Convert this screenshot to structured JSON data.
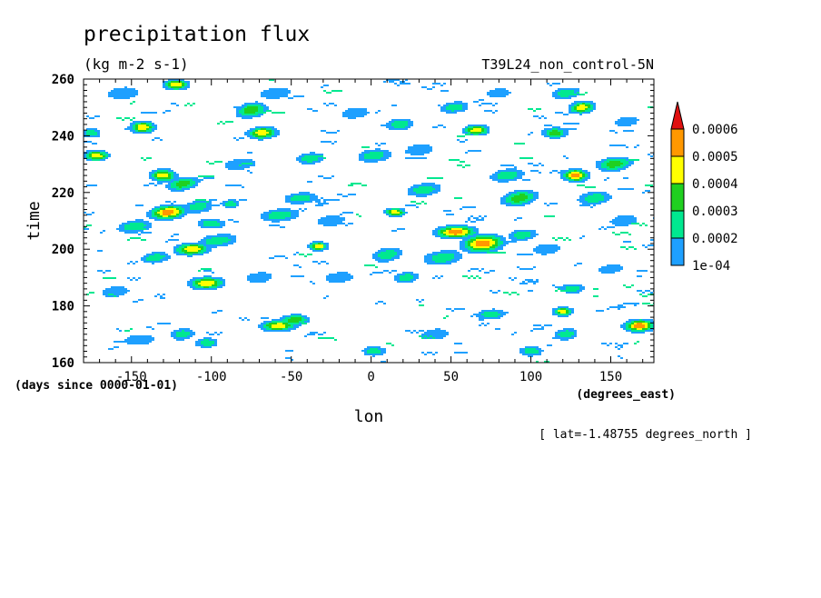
{
  "chart_data": {
    "type": "heatmap",
    "title": "precipitation flux",
    "units": "(kg m-2 s-1)",
    "experiment": "T39L24_non_control-5N",
    "xlabel": "lon",
    "x_units": "(degrees_east)",
    "ylabel": "time",
    "y_units": "(days since 0000-01-01)",
    "footnote": "[ lat=-1.48755 degrees_north ]",
    "xlim": [
      -180,
      177
    ],
    "ylim": [
      160,
      260
    ],
    "x_ticks": [
      {
        "value": -150,
        "label": "-150"
      },
      {
        "value": -100,
        "label": "-100"
      },
      {
        "value": -50,
        "label": "-50"
      },
      {
        "value": 0,
        "label": "0"
      },
      {
        "value": 50,
        "label": "50"
      },
      {
        "value": 100,
        "label": "100"
      },
      {
        "value": 150,
        "label": "150"
      }
    ],
    "y_ticks": [
      {
        "value": 160,
        "label": "160"
      },
      {
        "value": 180,
        "label": "180"
      },
      {
        "value": 200,
        "label": "200"
      },
      {
        "value": 220,
        "label": "220"
      },
      {
        "value": 240,
        "label": "240"
      },
      {
        "value": 260,
        "label": "260"
      }
    ],
    "colorbar": {
      "extend": "max",
      "levels": [
        {
          "value": "1e-04",
          "color": "#1ea0ff"
        },
        {
          "value": "0.0002",
          "color": "#00e890"
        },
        {
          "value": "0.0003",
          "color": "#20d020"
        },
        {
          "value": "0.0004",
          "color": "#ffff00"
        },
        {
          "value": "0.0005",
          "color": "#ff9800"
        },
        {
          "value": "0.0006",
          "color": "#e01010"
        }
      ]
    },
    "features": [
      {
        "lon": -143,
        "time": 243,
        "peak": 5,
        "dlon": 5,
        "dt": 1.4,
        "slope": 0
      },
      {
        "lon": -127,
        "time": 213,
        "peak": 6,
        "dlon": 7,
        "dt": 1.6,
        "slope": 0.3
      },
      {
        "lon": -130,
        "time": 226,
        "peak": 5,
        "dlon": 5,
        "dt": 1.4,
        "slope": 0
      },
      {
        "lon": -122,
        "time": 258,
        "peak": 5,
        "dlon": 5,
        "dt": 1.2,
        "slope": 0
      },
      {
        "lon": -118,
        "time": 223,
        "peak": 4,
        "dlon": 6,
        "dt": 1.6,
        "slope": 0.4
      },
      {
        "lon": -112,
        "time": 200,
        "peak": 5,
        "dlon": 7,
        "dt": 1.4,
        "slope": 0.2
      },
      {
        "lon": -103,
        "time": 188,
        "peak": 5,
        "dlon": 7,
        "dt": 1.4,
        "slope": 0.1
      },
      {
        "lon": -108,
        "time": 215,
        "peak": 3,
        "dlon": 6,
        "dt": 1.6,
        "slope": 0.3
      },
      {
        "lon": -100,
        "time": 209,
        "peak": 3,
        "dlon": 6,
        "dt": 1.2,
        "slope": 0
      },
      {
        "lon": -96,
        "time": 203,
        "peak": 3,
        "dlon": 8,
        "dt": 1.6,
        "slope": 0.5
      },
      {
        "lon": -88,
        "time": 216,
        "peak": 3,
        "dlon": 4,
        "dt": 1.0,
        "slope": 0
      },
      {
        "lon": -75,
        "time": 249,
        "peak": 4,
        "dlon": 6,
        "dt": 1.8,
        "slope": 0.3
      },
      {
        "lon": -68,
        "time": 241,
        "peak": 5,
        "dlon": 6,
        "dt": 1.4,
        "slope": 0.2
      },
      {
        "lon": -58,
        "time": 173,
        "peak": 5,
        "dlon": 7,
        "dt": 1.3,
        "slope": 0.2
      },
      {
        "lon": -48,
        "time": 175,
        "peak": 4,
        "dlon": 6,
        "dt": 1.3,
        "slope": 0.2
      },
      {
        "lon": -33,
        "time": 201,
        "peak": 5,
        "dlon": 4,
        "dt": 1.0,
        "slope": 0
      },
      {
        "lon": -38,
        "time": 232,
        "peak": 3,
        "dlon": 6,
        "dt": 1.4,
        "slope": 0.2
      },
      {
        "lon": -44,
        "time": 218,
        "peak": 3,
        "dlon": 7,
        "dt": 1.4,
        "slope": 0.3
      },
      {
        "lon": -57,
        "time": 212,
        "peak": 3,
        "dlon": 8,
        "dt": 1.6,
        "slope": 0.4
      },
      {
        "lon": -172,
        "time": 233,
        "peak": 5,
        "dlon": 5,
        "dt": 1.2,
        "slope": 0
      },
      {
        "lon": -175,
        "time": 241,
        "peak": 3,
        "dlon": 4,
        "dt": 1.2,
        "slope": 0
      },
      {
        "lon": -148,
        "time": 208,
        "peak": 3,
        "dlon": 7,
        "dt": 1.6,
        "slope": 0.4
      },
      {
        "lon": -135,
        "time": 197,
        "peak": 3,
        "dlon": 6,
        "dt": 1.4,
        "slope": 0.3
      },
      {
        "lon": -118,
        "time": 170,
        "peak": 3,
        "dlon": 5,
        "dt": 1.4,
        "slope": 0.2
      },
      {
        "lon": -103,
        "time": 167,
        "peak": 3,
        "dlon": 5,
        "dt": 1.2,
        "slope": 0
      },
      {
        "lon": -145,
        "time": 168,
        "peak": 2,
        "dlon": 8,
        "dt": 1.6,
        "slope": 0.3
      },
      {
        "lon": 10,
        "time": 198,
        "peak": 3,
        "dlon": 6,
        "dt": 1.8,
        "slope": 0.3
      },
      {
        "lon": 15,
        "time": 213,
        "peak": 5,
        "dlon": 4,
        "dt": 1.0,
        "slope": 0
      },
      {
        "lon": 2,
        "time": 233,
        "peak": 3,
        "dlon": 7,
        "dt": 1.6,
        "slope": 0.3
      },
      {
        "lon": 18,
        "time": 244,
        "peak": 3,
        "dlon": 6,
        "dt": 1.4,
        "slope": 0.2
      },
      {
        "lon": 33,
        "time": 221,
        "peak": 3,
        "dlon": 7,
        "dt": 1.6,
        "slope": 0.4
      },
      {
        "lon": 22,
        "time": 190,
        "peak": 3,
        "dlon": 5,
        "dt": 1.4,
        "slope": 0.2
      },
      {
        "lon": 2,
        "time": 164,
        "peak": 3,
        "dlon": 5,
        "dt": 1.2,
        "slope": 0
      },
      {
        "lon": 53,
        "time": 206,
        "peak": 6,
        "dlon": 8,
        "dt": 1.4,
        "slope": 0.1
      },
      {
        "lon": 70,
        "time": 202,
        "peak": 6,
        "dlon": 8,
        "dt": 2.0,
        "slope": 0.2
      },
      {
        "lon": 45,
        "time": 197,
        "peak": 3,
        "dlon": 8,
        "dt": 1.8,
        "slope": 0.4
      },
      {
        "lon": 66,
        "time": 242,
        "peak": 5,
        "dlon": 5,
        "dt": 1.2,
        "slope": 0
      },
      {
        "lon": 52,
        "time": 250,
        "peak": 3,
        "dlon": 6,
        "dt": 1.4,
        "slope": 0.3
      },
      {
        "lon": 85,
        "time": 226,
        "peak": 3,
        "dlon": 7,
        "dt": 1.6,
        "slope": 0.4
      },
      {
        "lon": 93,
        "time": 218,
        "peak": 4,
        "dlon": 7,
        "dt": 1.8,
        "slope": 0.4
      },
      {
        "lon": 95,
        "time": 205,
        "peak": 3,
        "dlon": 6,
        "dt": 1.4,
        "slope": 0.3
      },
      {
        "lon": 75,
        "time": 177,
        "peak": 3,
        "dlon": 6,
        "dt": 1.3,
        "slope": 0.2
      },
      {
        "lon": 120,
        "time": 178,
        "peak": 5,
        "dlon": 4,
        "dt": 1.0,
        "slope": 0
      },
      {
        "lon": 128,
        "time": 226,
        "peak": 6,
        "dlon": 5,
        "dt": 1.4,
        "slope": 0
      },
      {
        "lon": 132,
        "time": 250,
        "peak": 5,
        "dlon": 5,
        "dt": 1.4,
        "slope": 0.2
      },
      {
        "lon": 122,
        "time": 255,
        "peak": 3,
        "dlon": 6,
        "dt": 1.4,
        "slope": 0.3
      },
      {
        "lon": 140,
        "time": 218,
        "peak": 3,
        "dlon": 7,
        "dt": 1.6,
        "slope": 0.3
      },
      {
        "lon": 152,
        "time": 230,
        "peak": 4,
        "dlon": 7,
        "dt": 1.6,
        "slope": 0.3
      },
      {
        "lon": 168,
        "time": 173,
        "peak": 6,
        "dlon": 6,
        "dt": 1.4,
        "slope": 0.1
      },
      {
        "lon": 122,
        "time": 170,
        "peak": 3,
        "dlon": 5,
        "dt": 1.4,
        "slope": 0.2
      },
      {
        "lon": 126,
        "time": 186,
        "peak": 3,
        "dlon": 5,
        "dt": 1.2,
        "slope": 0
      },
      {
        "lon": 100,
        "time": 164,
        "peak": 3,
        "dlon": 5,
        "dt": 1.2,
        "slope": 0
      },
      {
        "lon": 115,
        "time": 241,
        "peak": 4,
        "dlon": 5,
        "dt": 1.2,
        "slope": 0
      },
      {
        "lon": 158,
        "time": 210,
        "peak": 2,
        "dlon": 7,
        "dt": 1.6,
        "slope": 0.3
      },
      {
        "lon": 150,
        "time": 193,
        "peak": 2,
        "dlon": 6,
        "dt": 1.4,
        "slope": 0.3
      },
      {
        "lon": -82,
        "time": 230,
        "peak": 2,
        "dlon": 8,
        "dt": 1.8,
        "slope": 0.4
      },
      {
        "lon": -20,
        "time": 190,
        "peak": 2,
        "dlon": 7,
        "dt": 1.6,
        "slope": 0.3
      },
      {
        "lon": -10,
        "time": 248,
        "peak": 2,
        "dlon": 7,
        "dt": 1.6,
        "slope": 0.3
      },
      {
        "lon": -155,
        "time": 255,
        "peak": 2,
        "dlon": 8,
        "dt": 1.8,
        "slope": 0.3
      },
      {
        "lon": -160,
        "time": 185,
        "peak": 2,
        "dlon": 7,
        "dt": 1.6,
        "slope": 0.3
      },
      {
        "lon": 40,
        "time": 170,
        "peak": 2,
        "dlon": 7,
        "dt": 1.6,
        "slope": 0.3
      },
      {
        "lon": -70,
        "time": 190,
        "peak": 2,
        "dlon": 7,
        "dt": 1.6,
        "slope": 0.3
      },
      {
        "lon": 110,
        "time": 200,
        "peak": 2,
        "dlon": 7,
        "dt": 1.6,
        "slope": 0.3
      },
      {
        "lon": 30,
        "time": 235,
        "peak": 2,
        "dlon": 7,
        "dt": 1.6,
        "slope": 0.3
      },
      {
        "lon": -25,
        "time": 210,
        "peak": 2,
        "dlon": 7,
        "dt": 1.6,
        "slope": 0.3
      },
      {
        "lon": 160,
        "time": 245,
        "peak": 2,
        "dlon": 6,
        "dt": 1.4,
        "slope": 0.3
      },
      {
        "lon": -60,
        "time": 255,
        "peak": 2,
        "dlon": 8,
        "dt": 1.6,
        "slope": 0.3
      },
      {
        "lon": 80,
        "time": 255,
        "peak": 2,
        "dlon": 6,
        "dt": 1.4,
        "slope": 0.3
      }
    ]
  }
}
